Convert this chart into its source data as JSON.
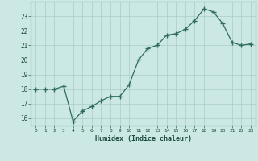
{
  "x": [
    0,
    1,
    2,
    3,
    4,
    5,
    6,
    7,
    8,
    9,
    10,
    11,
    12,
    13,
    14,
    15,
    16,
    17,
    18,
    19,
    20,
    21,
    22,
    23
  ],
  "y": [
    18.0,
    18.0,
    18.0,
    18.2,
    15.8,
    16.5,
    16.8,
    17.2,
    17.5,
    17.5,
    18.3,
    20.0,
    20.8,
    21.0,
    21.7,
    21.8,
    22.1,
    22.7,
    23.5,
    23.3,
    22.5,
    21.2,
    21.0,
    21.1
  ],
  "xlabel": "Humidex (Indice chaleur)",
  "xlim": [
    -0.5,
    23.5
  ],
  "ylim": [
    15.5,
    24.0
  ],
  "yticks": [
    16,
    17,
    18,
    19,
    20,
    21,
    22,
    23
  ],
  "xticks": [
    0,
    1,
    2,
    3,
    4,
    5,
    6,
    7,
    8,
    9,
    10,
    11,
    12,
    13,
    14,
    15,
    16,
    17,
    18,
    19,
    20,
    21,
    22,
    23
  ],
  "line_color": "#2e6b5e",
  "marker": "+",
  "marker_size": 4,
  "bg_color": "#cce8e4",
  "grid_color": "#aaccc8",
  "tick_label_color": "#1a4a3a",
  "xlabel_color": "#1a4a3a"
}
